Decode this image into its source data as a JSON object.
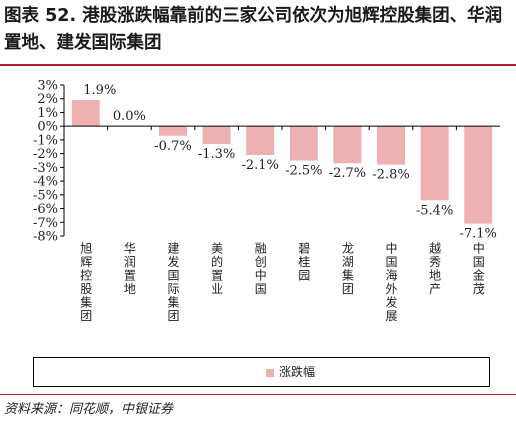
{
  "figure": {
    "title": "图表 52. 港股涨跌幅靠前的三家公司依次为旭辉控股集团、华润置地、建发国际集团",
    "source": "资料来源：同花顺，中银证券"
  },
  "colors": {
    "bar": "#eeb1b1",
    "rule": "#b11f24",
    "axis": "#000000"
  },
  "chart_data": {
    "type": "bar",
    "categories": [
      "旭辉控股集团",
      "华润置地",
      "建发国际集团",
      "美的置业",
      "融创中国",
      "碧桂园",
      "龙湖集团",
      "中国海外发展",
      "越秀地产",
      "中国金茂"
    ],
    "series": [
      {
        "name": "涨跌幅",
        "values": [
          1.9,
          0.0,
          -0.7,
          -1.3,
          -2.1,
          -2.5,
          -2.7,
          -2.8,
          -5.4,
          -7.1
        ]
      }
    ],
    "value_labels": [
      "1.9%",
      "0.0%",
      "-0.7%",
      "-1.3%",
      "-2.1%",
      "-2.5%",
      "-2.7%",
      "-2.8%",
      "-5.4%",
      "-7.1%"
    ],
    "yticks": [
      "3%",
      "2%",
      "1%",
      "0%",
      "-1%",
      "-2%",
      "-3%",
      "-4%",
      "-5%",
      "-6%",
      "-7%",
      "-8%"
    ],
    "ylim": [
      -8,
      3
    ],
    "grid": false,
    "legend_position": "bottom"
  }
}
